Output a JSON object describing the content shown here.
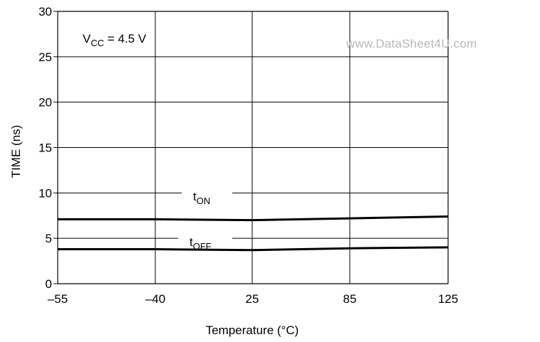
{
  "chart_data": {
    "type": "line",
    "title": "",
    "xlabel": "Temperature (°C)",
    "ylabel": "TIME (ns)",
    "categories": [
      "–55",
      "–40",
      "25",
      "85",
      "125"
    ],
    "ylim": [
      0,
      30
    ],
    "yticks": [
      "0",
      "5",
      "10",
      "15",
      "20",
      "25",
      "30"
    ],
    "grid": true,
    "series": [
      {
        "name_main": "t",
        "name_sub": "ON",
        "values": [
          7.1,
          7.1,
          7.0,
          7.2,
          7.4
        ]
      },
      {
        "name_main": "t",
        "name_sub": "OFF",
        "values": [
          3.8,
          3.8,
          3.7,
          3.9,
          4.0
        ]
      }
    ],
    "annotation": {
      "main": "V",
      "sub": "CC",
      "rest": " = 4.5 V"
    }
  },
  "watermark": "www.DataSheet4U.com"
}
